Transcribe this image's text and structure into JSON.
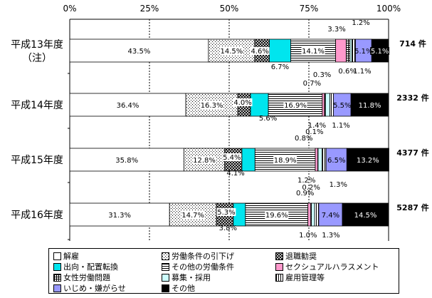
{
  "chart_data": {
    "type": "bar",
    "orientation": "horizontal-stacked-100",
    "xlim": [
      0,
      100
    ],
    "xticks": [
      "0%",
      "25%",
      "50%",
      "75%",
      "100%"
    ],
    "categories": [
      {
        "label": "平成13年度",
        "sublabel": "（注）",
        "count": "714 件"
      },
      {
        "label": "平成14年度",
        "sublabel": "",
        "count": "2332 件"
      },
      {
        "label": "平成15年度",
        "sublabel": "",
        "count": "4377 件"
      },
      {
        "label": "平成16年度",
        "sublabel": "",
        "count": "5287 件"
      }
    ],
    "series": [
      {
        "name": "解雇",
        "color": "#ffffff",
        "pattern": "solid",
        "values": [
          43.5,
          36.4,
          35.8,
          31.3
        ],
        "labels": [
          "43.5%",
          "36.4%",
          "35.8%",
          "31.3%"
        ]
      },
      {
        "name": "労働条件の引下げ",
        "color": "#ffffff",
        "pattern": "dots",
        "values": [
          14.5,
          16.3,
          12.8,
          14.7
        ],
        "labels": [
          "14.5%",
          "16.3%",
          "12.8%",
          "14.7%"
        ]
      },
      {
        "name": "退職勧奨",
        "color": "#ffffff",
        "pattern": "crosshatch",
        "values": [
          4.6,
          4.0,
          5.4,
          5.3
        ],
        "labels": [
          "4.6%",
          "4.0%",
          "5.4%",
          "5.3%"
        ]
      },
      {
        "name": "出向・配置転換",
        "color": "#00e5ee",
        "pattern": "solid",
        "values": [
          6.7,
          5.6,
          4.1,
          3.8
        ],
        "labels": [
          "6.7%",
          "5.6%",
          "4.1%",
          "3.8%"
        ]
      },
      {
        "name": "その他の労働条件",
        "color": "#ffffff",
        "pattern": "hlines",
        "values": [
          14.1,
          16.9,
          18.9,
          19.6
        ],
        "labels": [
          "14.1%",
          "16.9%",
          "18.9%",
          "19.6%"
        ]
      },
      {
        "name": "セクシュアルハラスメント",
        "color": "#ff99cc",
        "pattern": "solid",
        "values": [
          3.3,
          0.7,
          0.8,
          0.9
        ],
        "labels": [
          "3.3%",
          "0.7%",
          "0.8%",
          "0.9%"
        ]
      },
      {
        "name": "女性労働問題",
        "color": "#ffffff",
        "pattern": "grid",
        "values": [
          1.2,
          0.3,
          0.1,
          0.2
        ],
        "labels": [
          "1.2%",
          "0.3%",
          "0.1%",
          "0.2%"
        ]
      },
      {
        "name": "募集・採用",
        "color": "#ccffff",
        "pattern": "solid",
        "values": [
          0.6,
          1.4,
          1.2,
          1.0
        ],
        "labels": [
          "0.6%",
          "1.4%",
          "1.2%",
          "1.0%"
        ]
      },
      {
        "name": "雇用管理等",
        "color": "#ffffff",
        "pattern": "vlines",
        "values": [
          1.1,
          1.1,
          1.3,
          1.3
        ],
        "labels": [
          "1.1%",
          "1.1%",
          "1.3%",
          "1.3%"
        ]
      },
      {
        "name": "いじめ・嫌がらせ",
        "color": "#9999ff",
        "pattern": "solid",
        "values": [
          5.1,
          5.5,
          6.5,
          7.4
        ],
        "labels": [
          "5.1%",
          "5.5%",
          "6.5%",
          "7.4%"
        ]
      },
      {
        "name": "その他",
        "color": "#000000",
        "pattern": "solid",
        "values": [
          5.1,
          11.8,
          13.2,
          14.5
        ],
        "labels": [
          "5.1%",
          "11.8%",
          "13.2%",
          "14.5%"
        ]
      }
    ],
    "legend_position": "bottom",
    "grid": true
  }
}
